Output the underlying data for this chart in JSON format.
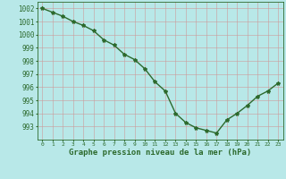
{
  "hours": [
    0,
    1,
    2,
    3,
    4,
    5,
    6,
    7,
    8,
    9,
    10,
    11,
    12,
    13,
    14,
    15,
    16,
    17,
    18,
    19,
    20,
    21,
    22,
    23
  ],
  "pressure": [
    1002.0,
    1001.7,
    1001.4,
    1001.0,
    1000.7,
    1000.3,
    999.6,
    999.2,
    998.5,
    998.1,
    997.4,
    996.4,
    995.7,
    994.0,
    993.3,
    992.9,
    992.7,
    992.5,
    993.5,
    994.0,
    994.6,
    995.3,
    995.7,
    996.3
  ],
  "line_color": "#2d6a2d",
  "marker": "*",
  "marker_size": 3,
  "linewidth": 1.0,
  "bg_color": "#b8e8e8",
  "grid_color": "#cc9999",
  "xlabel": "Graphe pression niveau de la mer (hPa)",
  "xlabel_color": "#2d6a2d",
  "tick_color": "#2d6a2d",
  "ylim_min": 992.0,
  "ylim_max": 1002.5,
  "yticks": [
    993,
    994,
    995,
    996,
    997,
    998,
    999,
    1000,
    1001,
    1002
  ],
  "title": ""
}
